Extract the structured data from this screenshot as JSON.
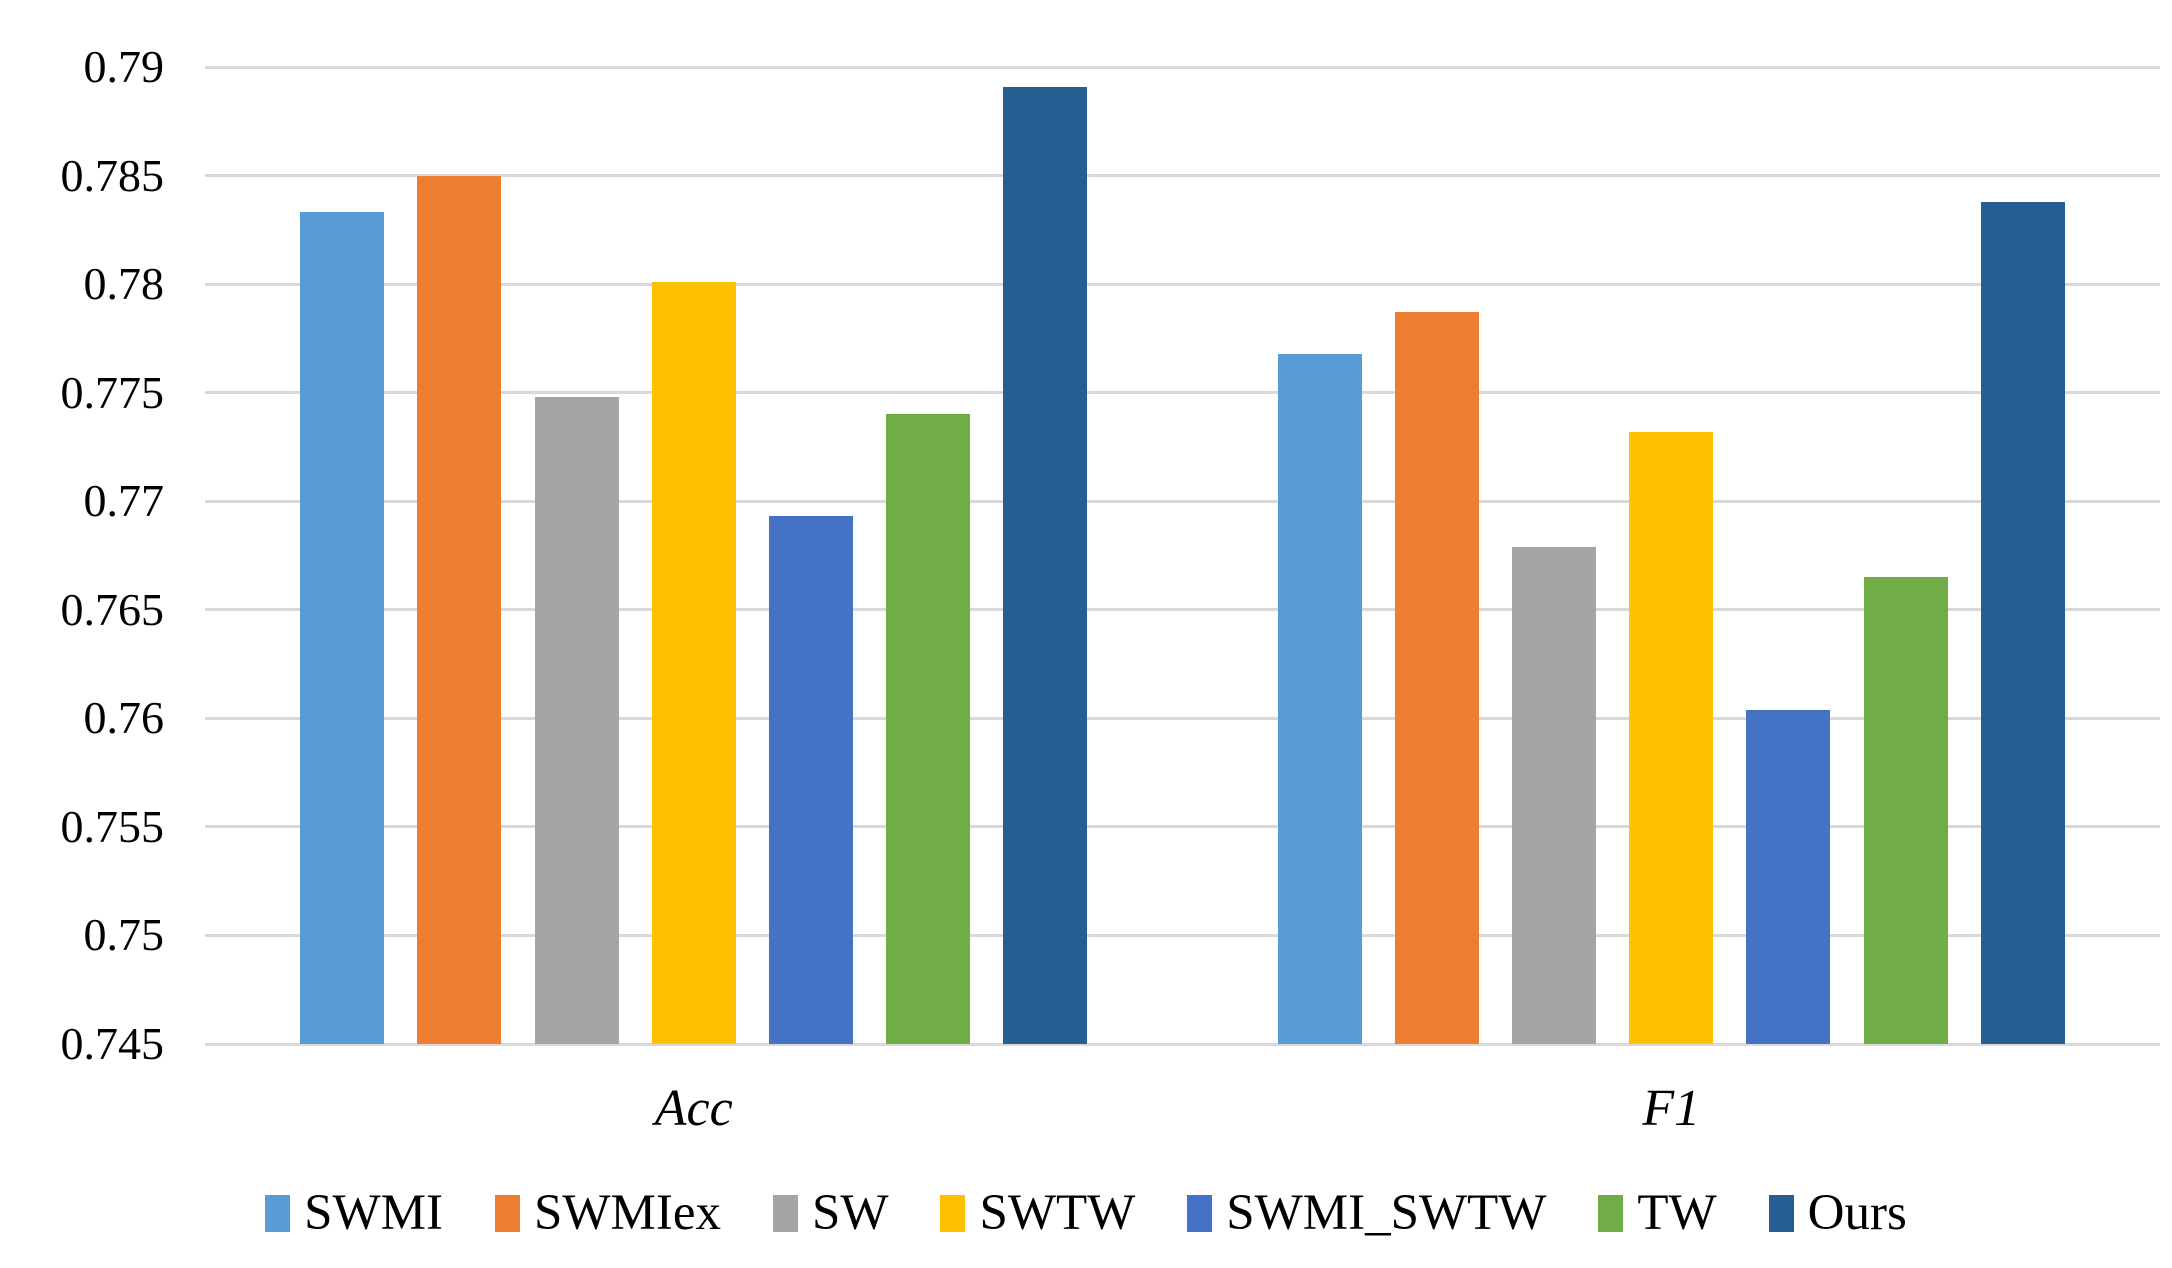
{
  "chart_data": {
    "type": "bar",
    "title": "",
    "categories": [
      "Acc",
      "F1"
    ],
    "series": [
      {
        "name": "SWMI",
        "color": "#5B9BD5",
        "values": [
          0.7833,
          0.7768
        ]
      },
      {
        "name": "SWMIex",
        "color": "#ED7D31",
        "values": [
          0.785,
          0.7787
        ]
      },
      {
        "name": "SW",
        "color": "#A5A5A5",
        "values": [
          0.7748,
          0.7679
        ]
      },
      {
        "name": "SWTW",
        "color": "#FFC000",
        "values": [
          0.7801,
          0.7732
        ]
      },
      {
        "name": "SWMI_SWTW",
        "color": "#4472C4",
        "values": [
          0.7693,
          0.7604
        ]
      },
      {
        "name": "TW",
        "color": "#70AD47",
        "values": [
          0.774,
          0.7665
        ]
      },
      {
        "name": "Ours",
        "color": "#275E91",
        "values": [
          0.7891,
          0.7838
        ]
      }
    ],
    "xlabel": "",
    "ylabel": "",
    "ylim": [
      0.745,
      0.79
    ],
    "y_tick_step": 0.005,
    "y_ticks": [
      "0.745",
      "0.75",
      "0.755",
      "0.76",
      "0.765",
      "0.77",
      "0.775",
      "0.78",
      "0.785",
      "0.79"
    ],
    "grid": true,
    "gridline_color": "#D9D9D9",
    "background_color": "#FFFFFF",
    "legend_position": "bottom"
  }
}
